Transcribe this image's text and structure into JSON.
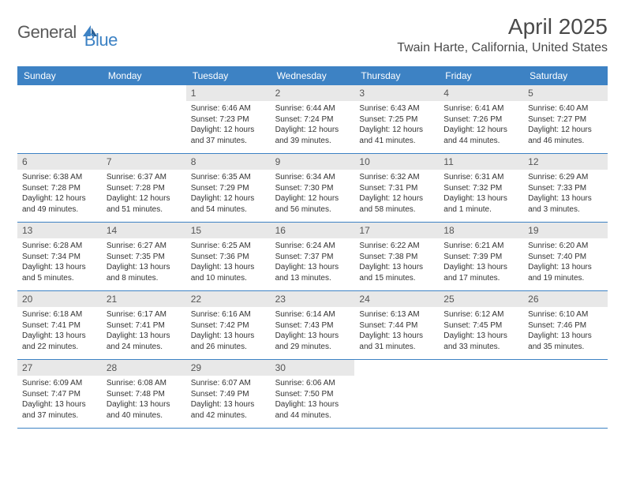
{
  "brand": {
    "part1": "General",
    "part2": "Blue"
  },
  "title": "April 2025",
  "location": "Twain Harte, California, United States",
  "colors": {
    "accent": "#3d82c4",
    "header_bg": "#e8e8e8",
    "text": "#333333",
    "title_text": "#4a4a4a",
    "logo_gray": "#5a5a5a"
  },
  "weekdays": [
    "Sunday",
    "Monday",
    "Tuesday",
    "Wednesday",
    "Thursday",
    "Friday",
    "Saturday"
  ],
  "weeks": [
    [
      {
        "day": "",
        "sunrise": "",
        "sunset": "",
        "daylight": ""
      },
      {
        "day": "",
        "sunrise": "",
        "sunset": "",
        "daylight": ""
      },
      {
        "day": "1",
        "sunrise": "Sunrise: 6:46 AM",
        "sunset": "Sunset: 7:23 PM",
        "daylight": "Daylight: 12 hours and 37 minutes."
      },
      {
        "day": "2",
        "sunrise": "Sunrise: 6:44 AM",
        "sunset": "Sunset: 7:24 PM",
        "daylight": "Daylight: 12 hours and 39 minutes."
      },
      {
        "day": "3",
        "sunrise": "Sunrise: 6:43 AM",
        "sunset": "Sunset: 7:25 PM",
        "daylight": "Daylight: 12 hours and 41 minutes."
      },
      {
        "day": "4",
        "sunrise": "Sunrise: 6:41 AM",
        "sunset": "Sunset: 7:26 PM",
        "daylight": "Daylight: 12 hours and 44 minutes."
      },
      {
        "day": "5",
        "sunrise": "Sunrise: 6:40 AM",
        "sunset": "Sunset: 7:27 PM",
        "daylight": "Daylight: 12 hours and 46 minutes."
      }
    ],
    [
      {
        "day": "6",
        "sunrise": "Sunrise: 6:38 AM",
        "sunset": "Sunset: 7:28 PM",
        "daylight": "Daylight: 12 hours and 49 minutes."
      },
      {
        "day": "7",
        "sunrise": "Sunrise: 6:37 AM",
        "sunset": "Sunset: 7:28 PM",
        "daylight": "Daylight: 12 hours and 51 minutes."
      },
      {
        "day": "8",
        "sunrise": "Sunrise: 6:35 AM",
        "sunset": "Sunset: 7:29 PM",
        "daylight": "Daylight: 12 hours and 54 minutes."
      },
      {
        "day": "9",
        "sunrise": "Sunrise: 6:34 AM",
        "sunset": "Sunset: 7:30 PM",
        "daylight": "Daylight: 12 hours and 56 minutes."
      },
      {
        "day": "10",
        "sunrise": "Sunrise: 6:32 AM",
        "sunset": "Sunset: 7:31 PM",
        "daylight": "Daylight: 12 hours and 58 minutes."
      },
      {
        "day": "11",
        "sunrise": "Sunrise: 6:31 AM",
        "sunset": "Sunset: 7:32 PM",
        "daylight": "Daylight: 13 hours and 1 minute."
      },
      {
        "day": "12",
        "sunrise": "Sunrise: 6:29 AM",
        "sunset": "Sunset: 7:33 PM",
        "daylight": "Daylight: 13 hours and 3 minutes."
      }
    ],
    [
      {
        "day": "13",
        "sunrise": "Sunrise: 6:28 AM",
        "sunset": "Sunset: 7:34 PM",
        "daylight": "Daylight: 13 hours and 5 minutes."
      },
      {
        "day": "14",
        "sunrise": "Sunrise: 6:27 AM",
        "sunset": "Sunset: 7:35 PM",
        "daylight": "Daylight: 13 hours and 8 minutes."
      },
      {
        "day": "15",
        "sunrise": "Sunrise: 6:25 AM",
        "sunset": "Sunset: 7:36 PM",
        "daylight": "Daylight: 13 hours and 10 minutes."
      },
      {
        "day": "16",
        "sunrise": "Sunrise: 6:24 AM",
        "sunset": "Sunset: 7:37 PM",
        "daylight": "Daylight: 13 hours and 13 minutes."
      },
      {
        "day": "17",
        "sunrise": "Sunrise: 6:22 AM",
        "sunset": "Sunset: 7:38 PM",
        "daylight": "Daylight: 13 hours and 15 minutes."
      },
      {
        "day": "18",
        "sunrise": "Sunrise: 6:21 AM",
        "sunset": "Sunset: 7:39 PM",
        "daylight": "Daylight: 13 hours and 17 minutes."
      },
      {
        "day": "19",
        "sunrise": "Sunrise: 6:20 AM",
        "sunset": "Sunset: 7:40 PM",
        "daylight": "Daylight: 13 hours and 19 minutes."
      }
    ],
    [
      {
        "day": "20",
        "sunrise": "Sunrise: 6:18 AM",
        "sunset": "Sunset: 7:41 PM",
        "daylight": "Daylight: 13 hours and 22 minutes."
      },
      {
        "day": "21",
        "sunrise": "Sunrise: 6:17 AM",
        "sunset": "Sunset: 7:41 PM",
        "daylight": "Daylight: 13 hours and 24 minutes."
      },
      {
        "day": "22",
        "sunrise": "Sunrise: 6:16 AM",
        "sunset": "Sunset: 7:42 PM",
        "daylight": "Daylight: 13 hours and 26 minutes."
      },
      {
        "day": "23",
        "sunrise": "Sunrise: 6:14 AM",
        "sunset": "Sunset: 7:43 PM",
        "daylight": "Daylight: 13 hours and 29 minutes."
      },
      {
        "day": "24",
        "sunrise": "Sunrise: 6:13 AM",
        "sunset": "Sunset: 7:44 PM",
        "daylight": "Daylight: 13 hours and 31 minutes."
      },
      {
        "day": "25",
        "sunrise": "Sunrise: 6:12 AM",
        "sunset": "Sunset: 7:45 PM",
        "daylight": "Daylight: 13 hours and 33 minutes."
      },
      {
        "day": "26",
        "sunrise": "Sunrise: 6:10 AM",
        "sunset": "Sunset: 7:46 PM",
        "daylight": "Daylight: 13 hours and 35 minutes."
      }
    ],
    [
      {
        "day": "27",
        "sunrise": "Sunrise: 6:09 AM",
        "sunset": "Sunset: 7:47 PM",
        "daylight": "Daylight: 13 hours and 37 minutes."
      },
      {
        "day": "28",
        "sunrise": "Sunrise: 6:08 AM",
        "sunset": "Sunset: 7:48 PM",
        "daylight": "Daylight: 13 hours and 40 minutes."
      },
      {
        "day": "29",
        "sunrise": "Sunrise: 6:07 AM",
        "sunset": "Sunset: 7:49 PM",
        "daylight": "Daylight: 13 hours and 42 minutes."
      },
      {
        "day": "30",
        "sunrise": "Sunrise: 6:06 AM",
        "sunset": "Sunset: 7:50 PM",
        "daylight": "Daylight: 13 hours and 44 minutes."
      },
      {
        "day": "",
        "sunrise": "",
        "sunset": "",
        "daylight": ""
      },
      {
        "day": "",
        "sunrise": "",
        "sunset": "",
        "daylight": ""
      },
      {
        "day": "",
        "sunrise": "",
        "sunset": "",
        "daylight": ""
      }
    ]
  ]
}
